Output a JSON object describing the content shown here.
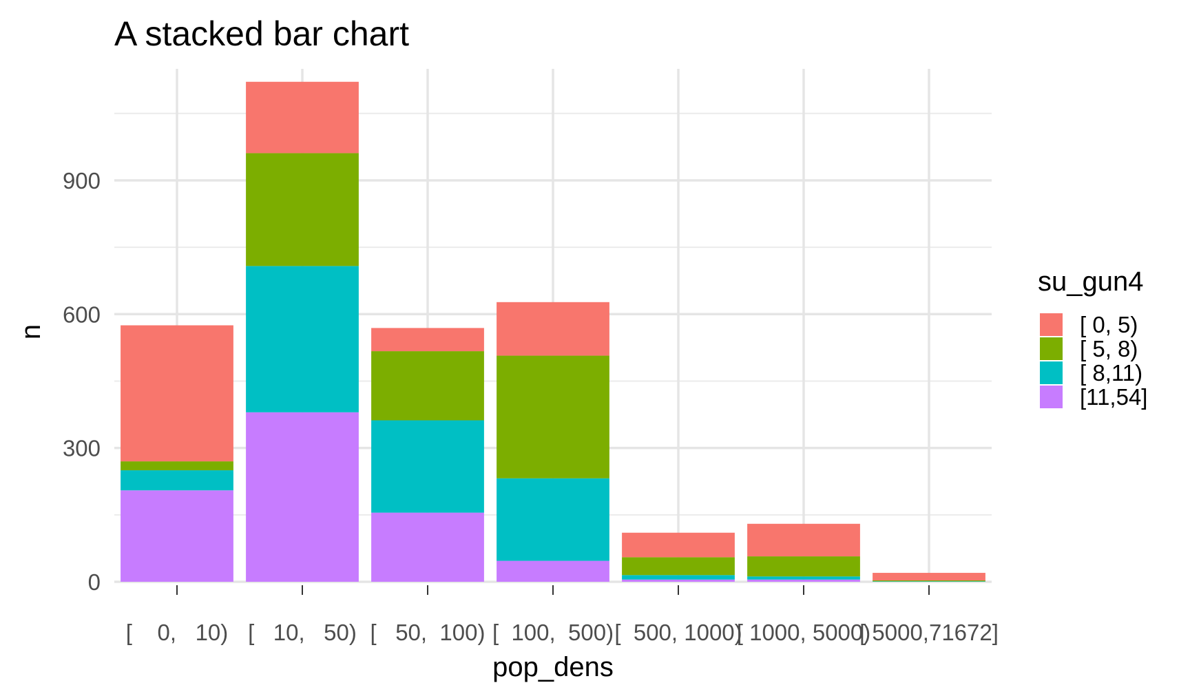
{
  "chart_data": {
    "type": "bar",
    "stacked": true,
    "title": "A stacked bar chart",
    "xlabel": "pop_dens",
    "ylabel": "n",
    "categories": [
      "[    0,   10)",
      "[   10,   50)",
      "[   50,  100)",
      "[  100,  500)",
      "[  500, 1000)",
      "[ 1000, 5000)",
      "[ 5000,71672]"
    ],
    "ylim": [
      0,
      1150
    ],
    "yticks": [
      0,
      300,
      600,
      900
    ],
    "grid": true,
    "legend": {
      "title": "su_gun4",
      "position": "right",
      "entries": [
        "[ 0, 5)",
        "[ 5, 8)",
        "[ 8,11)",
        "[11,54]"
      ]
    },
    "series": [
      {
        "name": "[ 0, 5)",
        "color": "#F8766D",
        "values": [
          305,
          160,
          52,
          120,
          55,
          73,
          17
        ]
      },
      {
        "name": "[ 5, 8)",
        "color": "#7CAE00",
        "values": [
          20,
          253,
          155,
          275,
          40,
          45,
          2
        ]
      },
      {
        "name": "[ 8,11)",
        "color": "#00BFC4",
        "values": [
          45,
          328,
          207,
          185,
          10,
          7,
          1
        ]
      },
      {
        "name": "[11,54]",
        "color": "#C77CFF",
        "values": [
          205,
          380,
          155,
          47,
          5,
          5,
          0
        ]
      }
    ]
  }
}
